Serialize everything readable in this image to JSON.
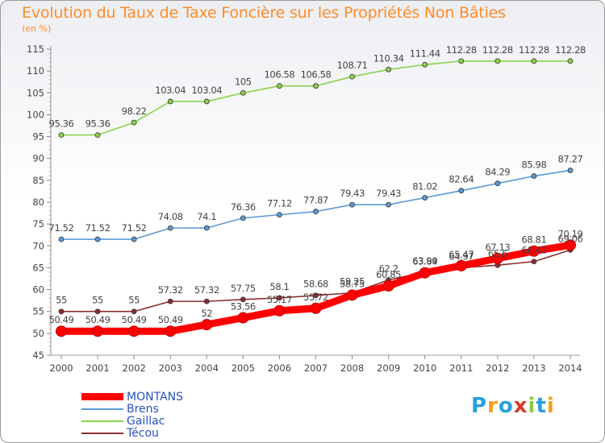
{
  "header": {
    "title": "Evolution du Taux de Taxe Foncière sur les Propriétés Non Bâties",
    "subtitle": "(en %)"
  },
  "logo": {
    "text": "Proxiti",
    "colors": [
      "#2aa0dc",
      "#f5a01e",
      "#2aa0dc",
      "#d73c28",
      "#8cc83c",
      "#2aa0dc",
      "#f5a01e"
    ]
  },
  "chart_data": {
    "type": "line",
    "title": "Evolution du Taux de Taxe Foncière sur les Propriétés Non Bâties",
    "subtitle": "(en %)",
    "x": [
      2000,
      2001,
      2002,
      2003,
      2004,
      2005,
      2006,
      2007,
      2008,
      2009,
      2010,
      2011,
      2012,
      2013,
      2014
    ],
    "ylim": [
      45,
      115
    ],
    "yticks": [
      45,
      50,
      55,
      60,
      65,
      70,
      75,
      80,
      85,
      90,
      95,
      100,
      105,
      110,
      115
    ],
    "grid": false,
    "legend_position": "bottom-left",
    "series": [
      {
        "name": "MONTANS",
        "color": "#ff0000",
        "bold": true,
        "values": [
          50.49,
          50.49,
          50.49,
          50.49,
          52,
          53.56,
          55.17,
          55.72,
          58.75,
          60.85,
          63.84,
          65.47,
          67.13,
          68.81,
          70.19
        ],
        "labels": [
          "50.49",
          "50.49",
          "50.49",
          "50.49",
          "52",
          "53.56",
          "55.17",
          "55.72",
          "58.75",
          "60.85",
          "63.84",
          "65.47",
          "67.13",
          "68.81",
          "70.19"
        ]
      },
      {
        "name": "Brens",
        "color": "#5b9bd5",
        "bold": false,
        "values": [
          71.52,
          71.52,
          71.52,
          74.08,
          74.1,
          76.36,
          77.12,
          77.87,
          79.43,
          79.43,
          81.02,
          82.64,
          84.29,
          85.98,
          87.27
        ],
        "labels": [
          "71.52",
          "71.52",
          "71.52",
          "74.08",
          "74.1",
          "76.36",
          "77.12",
          "77.87",
          "79.43",
          "79.43",
          "81.02",
          "82.64",
          "84.29",
          "85.98",
          "87.27"
        ]
      },
      {
        "name": "Gaillac",
        "color": "#8cd24a",
        "bold": false,
        "values": [
          95.36,
          95.36,
          98.22,
          103.04,
          103.04,
          105,
          106.58,
          106.58,
          108.71,
          110.34,
          111.44,
          112.28,
          112.28,
          112.28,
          112.28
        ],
        "labels": [
          "95.36",
          "95.36",
          "98.22",
          "103.04",
          "103.04",
          "105",
          "106.58",
          "106.58",
          "108.71",
          "110.34",
          "111.44",
          "112.28",
          "112.28",
          "112.28",
          "112.28"
        ]
      },
      {
        "name": "Técou",
        "color": "#8b2e2e",
        "bold": false,
        "values": [
          55,
          55,
          55,
          57.32,
          57.32,
          57.75,
          58.1,
          58.68,
          59.25,
          62.2,
          63.99,
          64.97,
          65.6,
          66.42,
          69.06
        ],
        "labels": [
          "55",
          "55",
          "55",
          "57.32",
          "57.32",
          "57.75",
          "58.1",
          "58.68",
          "59.25",
          "62.2",
          "63.99",
          "64.97",
          "65.6",
          "66.42",
          "69.06"
        ]
      }
    ]
  }
}
